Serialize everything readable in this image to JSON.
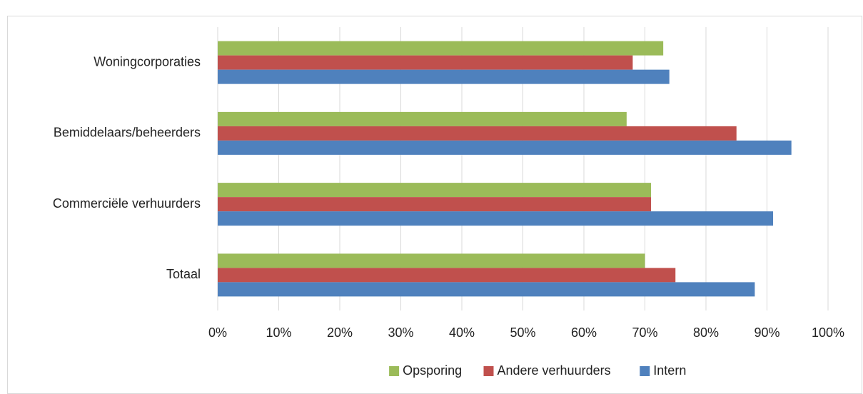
{
  "chart_data": {
    "type": "hbar",
    "categories": [
      "Woningcorporaties",
      "Bemiddelaars/beheerders",
      "Commerciële verhuurders",
      "Totaal"
    ],
    "series": [
      {
        "name": "Opsporing",
        "color": "#9bbb59",
        "values": [
          73,
          67,
          71,
          70
        ]
      },
      {
        "name": "Andere verhuurders",
        "color": "#c0504d",
        "values": [
          68,
          85,
          71,
          75
        ]
      },
      {
        "name": "Intern",
        "color": "#4f81bd",
        "values": [
          74,
          94,
          91,
          88
        ]
      }
    ],
    "xlim": [
      0,
      100
    ],
    "xticks": [
      {
        "value": 0,
        "label": "0%"
      },
      {
        "value": 10,
        "label": "10%"
      },
      {
        "value": 20,
        "label": "20%"
      },
      {
        "value": 30,
        "label": "30%"
      },
      {
        "value": 40,
        "label": "40%"
      },
      {
        "value": 50,
        "label": "50%"
      },
      {
        "value": 60,
        "label": "60%"
      },
      {
        "value": 70,
        "label": "70%"
      },
      {
        "value": 80,
        "label": "80%"
      },
      {
        "value": 90,
        "label": "90%"
      },
      {
        "value": 100,
        "label": "100%"
      }
    ],
    "grid": true,
    "legend": "bottom"
  }
}
